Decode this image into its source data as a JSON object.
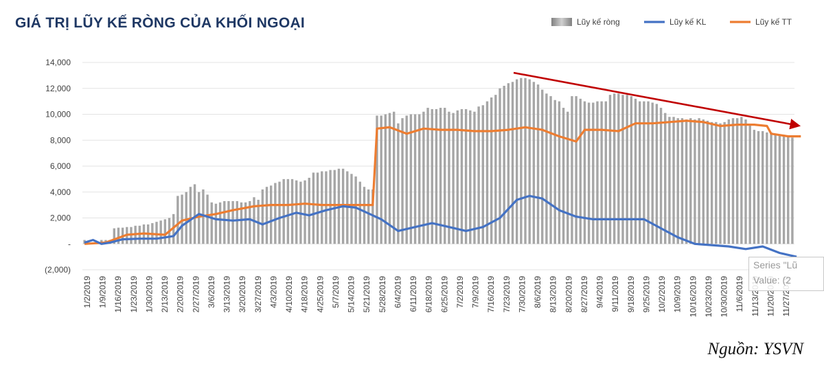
{
  "header": {
    "title": "GIÁ TRỊ LŨY KẾ RÒNG CỦA KHỐI NGOẠI"
  },
  "footer": {
    "source": "Nguồn: YSVN"
  },
  "tooltip": {
    "line1": "Series \"Lũ",
    "line2": "Value: (2"
  },
  "colors": {
    "bars": "#a6a6a6",
    "kl": "#4472c4",
    "tt": "#ed7d31",
    "trend_arrow": "#c00000",
    "title": "#1f3864"
  },
  "chart_data": {
    "type": "bar",
    "title": "GIÁ TRỊ LŨY KẾ RÒNG CỦA KHỐI NGOẠI",
    "xlabel": "",
    "ylabel": "",
    "ylim": [
      -2000,
      14000
    ],
    "y_ticks": [
      -2000,
      0,
      2000,
      4000,
      6000,
      8000,
      10000,
      12000,
      14000
    ],
    "y_tick_labels": [
      "(2,000)",
      "-",
      "2,000",
      "4,000",
      "6,000",
      "8,000",
      "10,000",
      "12,000",
      "14,000"
    ],
    "x_tick_labels": [
      "1/2/2019",
      "1/9/2019",
      "1/16/2019",
      "1/23/2019",
      "1/30/2019",
      "2/13/2019",
      "2/20/2019",
      "2/27/2019",
      "3/6/2019",
      "3/13/2019",
      "3/20/2019",
      "3/27/2019",
      "4/3/2019",
      "4/10/2019",
      "4/18/2019",
      "4/25/2019",
      "5/7/2019",
      "5/14/2019",
      "5/21/2019",
      "5/28/2019",
      "6/4/2019",
      "6/11/2019",
      "6/18/2019",
      "6/25/2019",
      "7/2/2019",
      "7/9/2019",
      "7/16/2019",
      "7/23/2019",
      "7/30/2019",
      "8/6/2019",
      "8/13/2019",
      "8/20/2019",
      "8/27/2019",
      "9/4/2019",
      "9/11/2019",
      "9/18/2019",
      "9/25/2019",
      "10/2/2019",
      "10/9/2019",
      "10/16/2019",
      "10/23/2019",
      "10/30/2019",
      "11/6/2019",
      "11/13/2019",
      "11/20/2019",
      "11/27/2019"
    ],
    "legend_position": "top-right",
    "grid": true,
    "annotation": "trend arrow pointing down-right",
    "series": [
      {
        "name": "Lũy kế ròng",
        "type": "bar",
        "values": [
          300,
          100,
          0,
          100,
          300,
          300,
          300,
          1200,
          1250,
          1250,
          1300,
          1300,
          1400,
          1400,
          1500,
          1500,
          1600,
          1700,
          1800,
          1900,
          2000,
          2300,
          3700,
          3800,
          4000,
          4400,
          4600,
          4000,
          4200,
          3800,
          3200,
          3100,
          3200,
          3300,
          3300,
          3300,
          3300,
          3200,
          3200,
          3300,
          3600,
          3400,
          4200,
          4400,
          4500,
          4700,
          4800,
          5000,
          5000,
          5000,
          4900,
          4800,
          4900,
          5100,
          5500,
          5500,
          5600,
          5600,
          5700,
          5700,
          5800,
          5800,
          5600,
          5400,
          5200,
          4800,
          4400,
          4200,
          4200,
          9900,
          9900,
          10000,
          10100,
          10200,
          9300,
          9700,
          9900,
          10000,
          10000,
          10000,
          10200,
          10500,
          10400,
          10400,
          10500,
          10500,
          10200,
          10100,
          10300,
          10400,
          10400,
          10300,
          10200,
          10600,
          10700,
          11000,
          11300,
          11500,
          12000,
          12200,
          12400,
          12500,
          12700,
          12800,
          12800,
          12700,
          12500,
          12300,
          11900,
          11600,
          11400,
          11100,
          11000,
          10500,
          10200,
          11400,
          11400,
          11200,
          11000,
          10900,
          10900,
          11000,
          11000,
          11000,
          11500,
          11600,
          11600,
          11500,
          11500,
          11400,
          11200,
          11000,
          11000,
          11000,
          10900,
          10800,
          10500,
          10100,
          9800,
          9800,
          9700,
          9700,
          9600,
          9700,
          9600,
          9700,
          9600,
          9500,
          9400,
          9400,
          9300,
          9400,
          9600,
          9700,
          9700,
          9800,
          9600,
          9200,
          8800,
          8700,
          8700,
          8600,
          8600,
          8500,
          8400,
          8300,
          8300,
          8200
        ]
      },
      {
        "name": "Lũy kế KL",
        "type": "line",
        "x_index": [
          0,
          2,
          4,
          6,
          9,
          13,
          17,
          21,
          23,
          27,
          31,
          35,
          39,
          42,
          46,
          50,
          53,
          57,
          61,
          64,
          66,
          70,
          74,
          78,
          82,
          86,
          90,
          94,
          98,
          102,
          105,
          108,
          112,
          116,
          120,
          124,
          128,
          132,
          136,
          140,
          144,
          148,
          152,
          156,
          160,
          164,
          168
        ],
        "values": [
          100,
          300,
          0,
          100,
          350,
          400,
          400,
          600,
          1400,
          2300,
          1900,
          1800,
          1900,
          1500,
          2000,
          2400,
          2200,
          2600,
          2900,
          2800,
          2500,
          1900,
          1000,
          1300,
          1600,
          1300,
          1000,
          1300,
          2000,
          3400,
          3700,
          3500,
          2600,
          2100,
          1900,
          1900,
          1900,
          1900,
          1200,
          500,
          0,
          -100,
          -200,
          -400,
          -200,
          -700,
          -1000
        ]
      },
      {
        "name": "Lũy kế TT",
        "type": "line",
        "x_index": [
          0,
          5,
          10,
          14,
          19,
          23,
          27,
          31,
          35,
          40,
          44,
          48,
          52,
          56,
          60,
          64,
          68,
          69,
          72,
          76,
          80,
          84,
          88,
          92,
          96,
          100,
          104,
          108,
          112,
          116,
          118,
          122,
          126,
          130,
          134,
          138,
          142,
          146,
          150,
          154,
          158,
          161,
          162,
          164,
          166,
          169
        ],
        "values": [
          0,
          100,
          700,
          800,
          700,
          1800,
          2100,
          2300,
          2600,
          2900,
          3000,
          3000,
          3100,
          3000,
          3000,
          3000,
          3000,
          8900,
          9000,
          8500,
          8900,
          8800,
          8800,
          8700,
          8700,
          8800,
          9000,
          8800,
          8300,
          7900,
          8800,
          8800,
          8700,
          9300,
          9300,
          9400,
          9500,
          9400,
          9100,
          9200,
          9200,
          9100,
          8500,
          8400,
          8300,
          8300
        ]
      }
    ]
  }
}
